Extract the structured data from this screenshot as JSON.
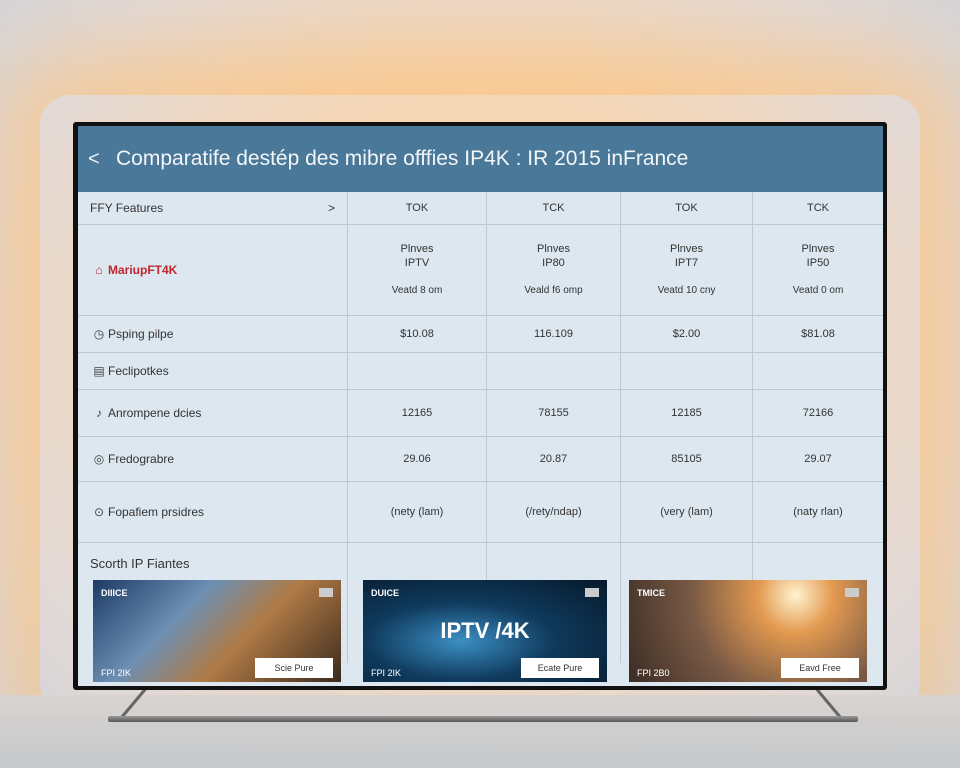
{
  "header": {
    "back_icon": "chevron-left-icon",
    "back": "<",
    "title": "Comparatife destép des mibre offfies IP4K : IR 2015 inFrance",
    "color": "#4a7898"
  },
  "table": {
    "feature_header": "FFY Features",
    "expand": ">",
    "columns": [
      "TOK",
      "TCK",
      "TOK",
      "TCK"
    ],
    "brand": "MariupFT4K",
    "brand_color": "#c0262d",
    "plans": [
      {
        "name": "Plnves",
        "sub": "IPTV",
        "note": "Veatd 8 om"
      },
      {
        "name": "Plnves",
        "sub": "IP80",
        "note": "Veald f6 omp"
      },
      {
        "name": "Plnves",
        "sub": "IPT7",
        "note": "Veatd 10 cny"
      },
      {
        "name": "Plnves",
        "sub": "IP50",
        "note": "Veatd 0 om"
      }
    ],
    "rows": [
      {
        "icon": "clock-icon",
        "label": "Psping pilpe",
        "values": [
          "$10.08",
          "116.109",
          "$2.00",
          "$81.08"
        ]
      },
      {
        "icon": "clipboard-icon",
        "label": "Feclipotkes",
        "values": [
          "",
          "",
          "",
          ""
        ]
      },
      {
        "icon": "note-icon",
        "label": "Anrompene dcies",
        "values": [
          "12165",
          "78155",
          "12185",
          "72166"
        ]
      },
      {
        "icon": "globe-icon",
        "label": "Fredograbre",
        "values": [
          "29.06",
          "20.87",
          "85105",
          "29.07"
        ]
      },
      {
        "icon": "play-icon",
        "label": "Fopafiem prsidres",
        "values": [
          "(nety (lam)",
          "(/rety/ndap)",
          "(very (lam)",
          "(naty rlan)"
        ]
      }
    ]
  },
  "cards_label": "Scorth IP Fiantes",
  "cards": [
    {
      "tag": "DIIICE",
      "price": "FPI 2IK",
      "button": "Scie Pure"
    },
    {
      "tag": "DUICE",
      "price": "FPI 2IK",
      "button": "Ecate Pure",
      "headline": "IPTV /4K"
    },
    {
      "tag": "TMICE",
      "price": "FPI 2B0",
      "button": "Eavd Free"
    }
  ]
}
